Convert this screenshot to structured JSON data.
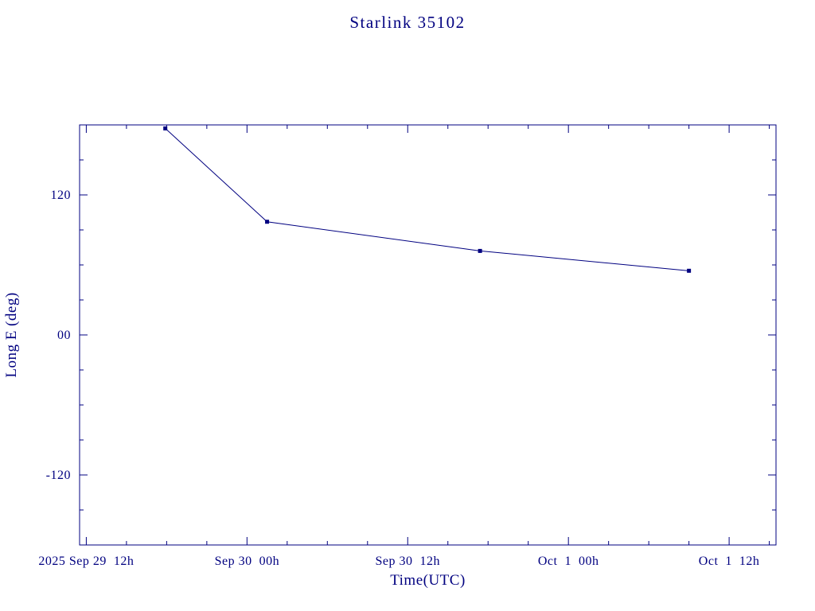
{
  "chart_data": {
    "type": "line",
    "title": "Starlink 35102",
    "xlabel": "Time(UTC)",
    "ylabel": "Long E (deg)",
    "color": "#000080",
    "background": "#ffffff",
    "grid": false,
    "legend": null,
    "marker": "filled-square",
    "x_unit": "hours since 2025 Sep 29 12:00 UTC",
    "xlim": [
      -0.5,
      51.5
    ],
    "ylim": [
      -180,
      180
    ],
    "x_major_ticks": [
      0,
      12,
      24,
      36,
      48
    ],
    "x_tick_labels": [
      "2025 Sep 29  12h",
      "Sep 30  00h",
      "Sep 30  12h",
      "Oct  1  00h",
      "Oct  1  12h"
    ],
    "x_minor_ticks": [
      3,
      6,
      9,
      15,
      18,
      21,
      27,
      30,
      33,
      39,
      42,
      45,
      51
    ],
    "y_major_ticks": [
      120,
      0,
      -120
    ],
    "y_tick_labels": [
      "120",
      "00",
      "-120"
    ],
    "y_minor_ticks": [
      -150,
      -90,
      -60,
      -30,
      30,
      60,
      90,
      150
    ],
    "points": [
      {
        "t": 5.9,
        "long_e": 177,
        "approx_time": "Sep 29 ~18h"
      },
      {
        "t": 13.5,
        "long_e": 97,
        "approx_time": "Sep 30 ~01h30"
      },
      {
        "t": 29.4,
        "long_e": 72,
        "approx_time": "Sep 30 ~17h25"
      },
      {
        "t": 45.0,
        "long_e": 55,
        "approx_time": "Oct 1 ~09h"
      }
    ]
  }
}
